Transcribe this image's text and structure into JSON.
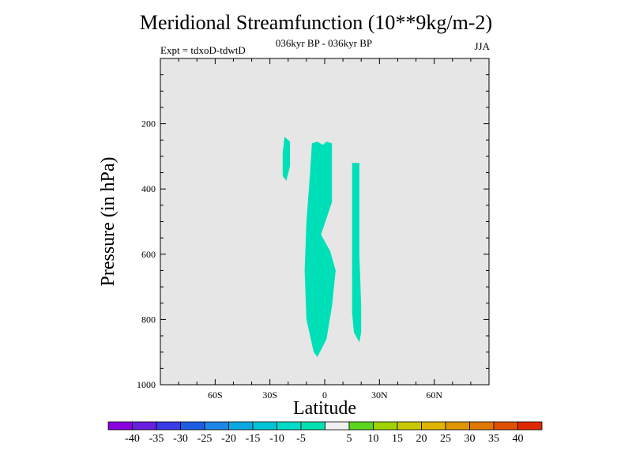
{
  "chart_data": {
    "type": "contour",
    "title": "Meridional Streamfunction (10**9kg/m-2)",
    "subtitle_center": "036kyr BP - 036kyr BP",
    "subtitle_left": "Expt = tdxoD-tdwtD",
    "subtitle_right": "JJA",
    "xlabel": "Latitude",
    "ylabel": "Pressure (in hPa)",
    "xlim": [
      -90,
      90
    ],
    "ylim": [
      1000,
      0
    ],
    "x_ticks": [
      {
        "value": -60,
        "label": "60S"
      },
      {
        "value": -30,
        "label": "30S"
      },
      {
        "value": 0,
        "label": "0"
      },
      {
        "value": 30,
        "label": "30N"
      },
      {
        "value": 60,
        "label": "60N"
      }
    ],
    "y_ticks": [
      {
        "value": 200,
        "label": "200"
      },
      {
        "value": 400,
        "label": "400"
      },
      {
        "value": 600,
        "label": "600"
      },
      {
        "value": 800,
        "label": "800"
      },
      {
        "value": 1000,
        "label": "1000"
      }
    ],
    "background_color": "#e6e6e6",
    "regions": [
      {
        "name": "region-a",
        "level": "-10 to -5",
        "color": "#00e0b8",
        "points": [
          [
            -22,
            240
          ],
          [
            -19,
            255
          ],
          [
            -19,
            330
          ],
          [
            -21,
            375
          ],
          [
            -23,
            360
          ],
          [
            -23,
            290
          ]
        ]
      },
      {
        "name": "region-b",
        "level": "-10 to -5",
        "color": "#00e0b8",
        "points": [
          [
            -7,
            260
          ],
          [
            -4,
            255
          ],
          [
            -1,
            265
          ],
          [
            1,
            255
          ],
          [
            4,
            260
          ],
          [
            4,
            440
          ],
          [
            -2,
            540
          ],
          [
            3,
            590
          ],
          [
            6,
            650
          ],
          [
            4,
            760
          ],
          [
            1,
            860
          ],
          [
            -4,
            915
          ],
          [
            -6,
            900
          ],
          [
            -10,
            800
          ],
          [
            -11,
            650
          ],
          [
            -10,
            500
          ],
          [
            -8,
            350
          ]
        ]
      },
      {
        "name": "region-c",
        "level": "-10 to -5",
        "color": "#00e0b8",
        "points": [
          [
            15,
            320
          ],
          [
            19,
            320
          ],
          [
            19,
            600
          ],
          [
            20,
            760
          ],
          [
            20,
            840
          ],
          [
            19,
            870
          ],
          [
            16,
            840
          ],
          [
            15,
            780
          ],
          [
            15,
            600
          ]
        ]
      }
    ],
    "colorbar": {
      "colors": [
        "#8a00e0",
        "#6a1ee0",
        "#3a3ae6",
        "#1e5ee6",
        "#1e86e6",
        "#0aa8e0",
        "#00c4d6",
        "#00dcc8",
        "#00e0b0",
        "#f0f0f0",
        "#5ad61e",
        "#a0d200",
        "#c8c800",
        "#e0b400",
        "#e09600",
        "#e07800",
        "#e05000",
        "#e02800"
      ],
      "labels": [
        "-40",
        "-35",
        "-30",
        "-25",
        "-20",
        "-15",
        "-10",
        "-5",
        "5",
        "10",
        "15",
        "20",
        "25",
        "30",
        "35",
        "40"
      ]
    }
  }
}
